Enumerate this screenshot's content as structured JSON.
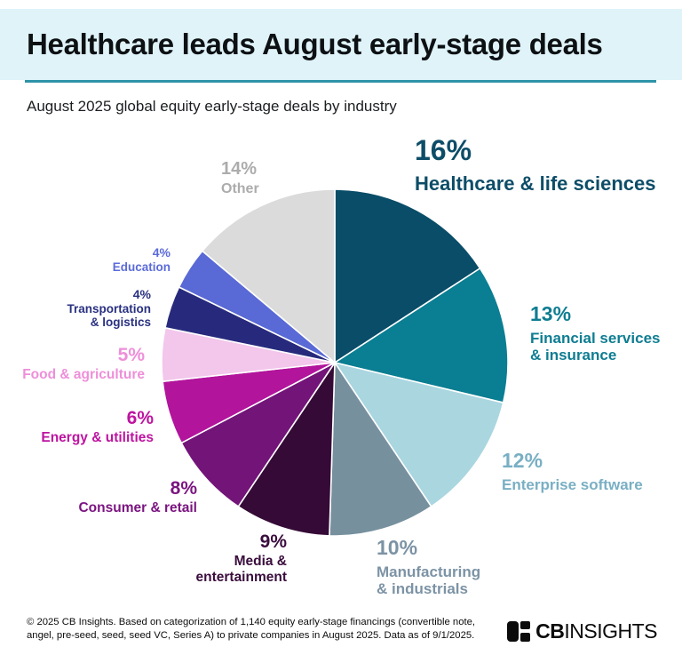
{
  "header": {
    "title": "Healthcare leads August early-stage deals",
    "subtitle": "August 2025 global equity early-stage deals by industry"
  },
  "chart_data": {
    "type": "pie",
    "title": "Healthcare leads August early-stage deals",
    "subtitle": "August 2025 global equity early-stage deals by industry",
    "unit": "% of deals",
    "start_angle_deg": 0,
    "direction": "clockwise",
    "legend_position": "labels around pie",
    "segments": [
      {
        "id": "healthcare",
        "label": "Healthcare & life sciences",
        "display_label": "Healthcare & life sciences",
        "pct_label": "16%",
        "value": 16,
        "color": "#094d68",
        "label_color": "#0d4d68"
      },
      {
        "id": "financial",
        "label": "Financial services & insurance",
        "display_label": "Financial services\n& insurance",
        "pct_label": "13%",
        "value": 13,
        "color": "#0a7e92",
        "label_color": "#0e7d92"
      },
      {
        "id": "enterprise",
        "label": "Enterprise software",
        "display_label": "Enterprise software",
        "pct_label": "12%",
        "value": 12,
        "color": "#aad6e0",
        "label_color": "#79afc4"
      },
      {
        "id": "manufacturing",
        "label": "Manufacturing & industrials",
        "display_label": "Manufacturing\n& industrials",
        "pct_label": "10%",
        "value": 10,
        "color": "#76909e",
        "label_color": "#7c93a5"
      },
      {
        "id": "media",
        "label": "Media & entertainment",
        "display_label": "Media &\nentertainment",
        "pct_label": "9%",
        "value": 9,
        "color": "#350a36",
        "label_color": "#3a0d3d"
      },
      {
        "id": "consumer",
        "label": "Consumer & retail",
        "display_label": "Consumer & retail",
        "pct_label": "8%",
        "value": 8,
        "color": "#731479",
        "label_color": "#7b1581"
      },
      {
        "id": "energy",
        "label": "Energy & utilities",
        "display_label": "Energy & utilities",
        "pct_label": "6%",
        "value": 6,
        "color": "#b2149c",
        "label_color": "#be14a0"
      },
      {
        "id": "food",
        "label": "Food & agriculture",
        "display_label": "Food & agriculture",
        "pct_label": "5%",
        "value": 5,
        "color": "#f3c6eb",
        "label_color": "#ee8fd9"
      },
      {
        "id": "transportation",
        "label": "Transportation & logistics",
        "display_label": "Transportation\n& logistics",
        "pct_label": "4%",
        "value": 4,
        "color": "#272a7c",
        "label_color": "#293180"
      },
      {
        "id": "education",
        "label": "Education",
        "display_label": "Education",
        "pct_label": "4%",
        "value": 4,
        "color": "#5969d5",
        "label_color": "#5b6bd9"
      },
      {
        "id": "other",
        "label": "Other",
        "display_label": "Other",
        "pct_label": "14%",
        "value": 14,
        "color": "#dbdbdb",
        "label_color": "#acacac"
      }
    ]
  },
  "footer": {
    "disclaimer": "© 2025 CB Insights. Based on categorization of 1,140 equity early-stage financings (convertible note,\nangel, pre-seed, seed, seed VC, Series A) to private companies in August 2025. Data as of 9/1/2025.",
    "logo": {
      "bold": "CB",
      "regular": "INSIGHTS"
    }
  },
  "colors": {
    "header_bg": "#dff3f9",
    "divider": "#2d93a8",
    "slice_border": "#ffffff"
  }
}
